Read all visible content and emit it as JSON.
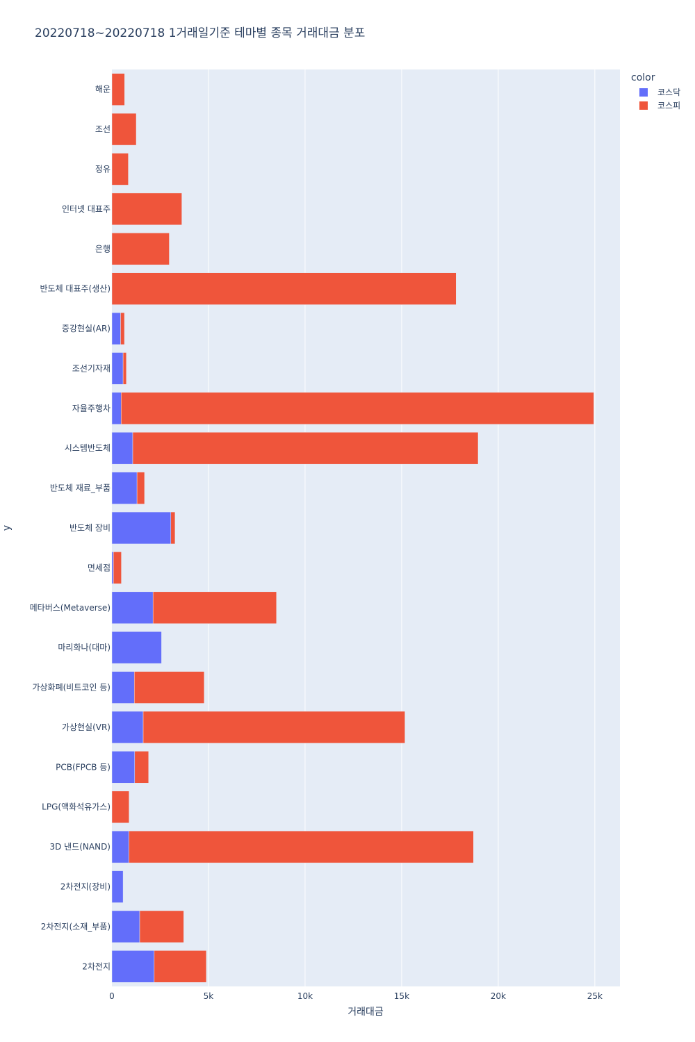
{
  "chart_data": {
    "type": "bar",
    "orientation": "horizontal",
    "barmode": "stack",
    "title": "20220718~20220718 1거래일기준 테마별 종목 거래대금 분포",
    "xlabel": "거래대금",
    "ylabel": "y",
    "xlim": [
      0,
      26300
    ],
    "x_ticks": [
      0,
      5000,
      10000,
      15000,
      20000,
      25000
    ],
    "x_tick_labels": [
      "0",
      "5k",
      "10k",
      "15k",
      "20k",
      "25k"
    ],
    "grid": true,
    "legend_title": "color",
    "legend_position": "top-right",
    "categories": [
      "해운",
      "조선",
      "정유",
      "인터넷 대표주",
      "은행",
      "반도체 대표주(생산)",
      "증강현실(AR)",
      "조선기자재",
      "자율주행차",
      "시스템반도체",
      "반도체 재료_부품",
      "반도체 장비",
      "면세점",
      "메타버스(Metaverse)",
      "마리화나(대마)",
      "가상화폐(비트코인 등)",
      "가상현실(VR)",
      "PCB(FPCB 등)",
      "LPG(액화석유가스)",
      "3D 낸드(NAND)",
      "2차전지(장비)",
      "2차전지(소재_부품)",
      "2차전지"
    ],
    "series": [
      {
        "name": "코스닥",
        "color": "#636efa",
        "values": [
          0,
          0,
          0,
          0,
          0,
          0,
          450,
          580,
          480,
          1080,
          1300,
          3050,
          80,
          2130,
          2570,
          1160,
          1620,
          1180,
          0,
          880,
          580,
          1440,
          2190
        ]
      },
      {
        "name": "코스피",
        "color": "#ef553b",
        "values": [
          660,
          1260,
          850,
          3620,
          2970,
          17820,
          200,
          170,
          24470,
          17880,
          390,
          220,
          410,
          6390,
          0,
          3620,
          13550,
          720,
          890,
          17840,
          0,
          2280,
          2700
        ]
      }
    ]
  }
}
